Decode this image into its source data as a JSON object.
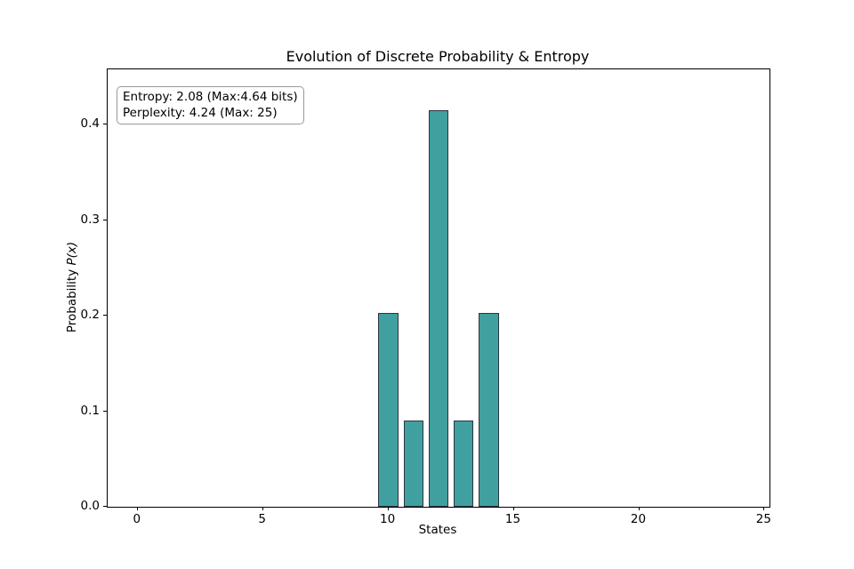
{
  "chart_data": {
    "type": "bar",
    "title": "Evolution of Discrete Probability & Entropy",
    "xlabel": "States",
    "ylabel": "Probability P(x)",
    "ylabel_text": "Probability ",
    "ylabel_math": "P(x)",
    "categories": [
      10,
      11,
      12,
      13,
      14
    ],
    "values": [
      0.203,
      0.09,
      0.415,
      0.09,
      0.203
    ],
    "bar_width": 0.8,
    "xlim": [
      -1.2,
      25.2
    ],
    "ylim": [
      0,
      0.4577
    ],
    "xtick_values": [
      0,
      5,
      10,
      15,
      20,
      25
    ],
    "xtick_labels": [
      "0",
      "5",
      "10",
      "15",
      "20",
      "25"
    ],
    "ytick_values": [
      0.0,
      0.1,
      0.2,
      0.3,
      0.4
    ],
    "ytick_labels": [
      "0.0",
      "0.1",
      "0.2",
      "0.3",
      "0.4"
    ],
    "grid": false,
    "legend": null,
    "annotation": {
      "line1": "Entropy: 2.08 (Max:4.64 bits)",
      "line2": "Perplexity: 4.24 (Max: 25)"
    },
    "colors": {
      "bar_fill": "#40a0a0",
      "bar_edge": "#2a3440",
      "spine": "#000000",
      "text": "#000000",
      "annotation_border": "#999999",
      "annotation_bg": "#ffffff",
      "background": "#ffffff"
    }
  }
}
